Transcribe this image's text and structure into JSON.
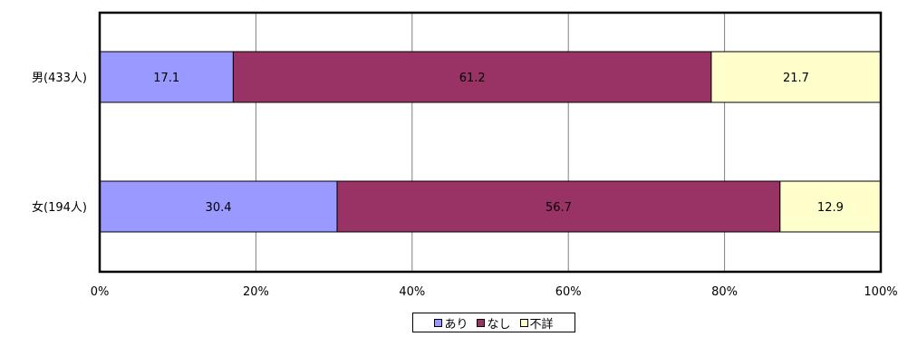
{
  "chart_data": {
    "type": "bar",
    "orientation": "horizontal",
    "stacked": true,
    "percent": true,
    "categories": [
      "男(433人)",
      "女(194人)"
    ],
    "series": [
      {
        "name": "あり",
        "color": "#9999ff",
        "values": [
          17.1,
          30.4
        ]
      },
      {
        "name": "なし",
        "color": "#993366",
        "values": [
          61.2,
          56.7
        ]
      },
      {
        "name": "不詳",
        "color": "#ffffcc",
        "values": [
          21.7,
          12.9
        ]
      }
    ],
    "xlim": [
      0,
      100
    ],
    "xticks": [
      "0%",
      "20%",
      "40%",
      "60%",
      "80%",
      "100%"
    ],
    "grid": true,
    "legend_position": "bottom"
  }
}
